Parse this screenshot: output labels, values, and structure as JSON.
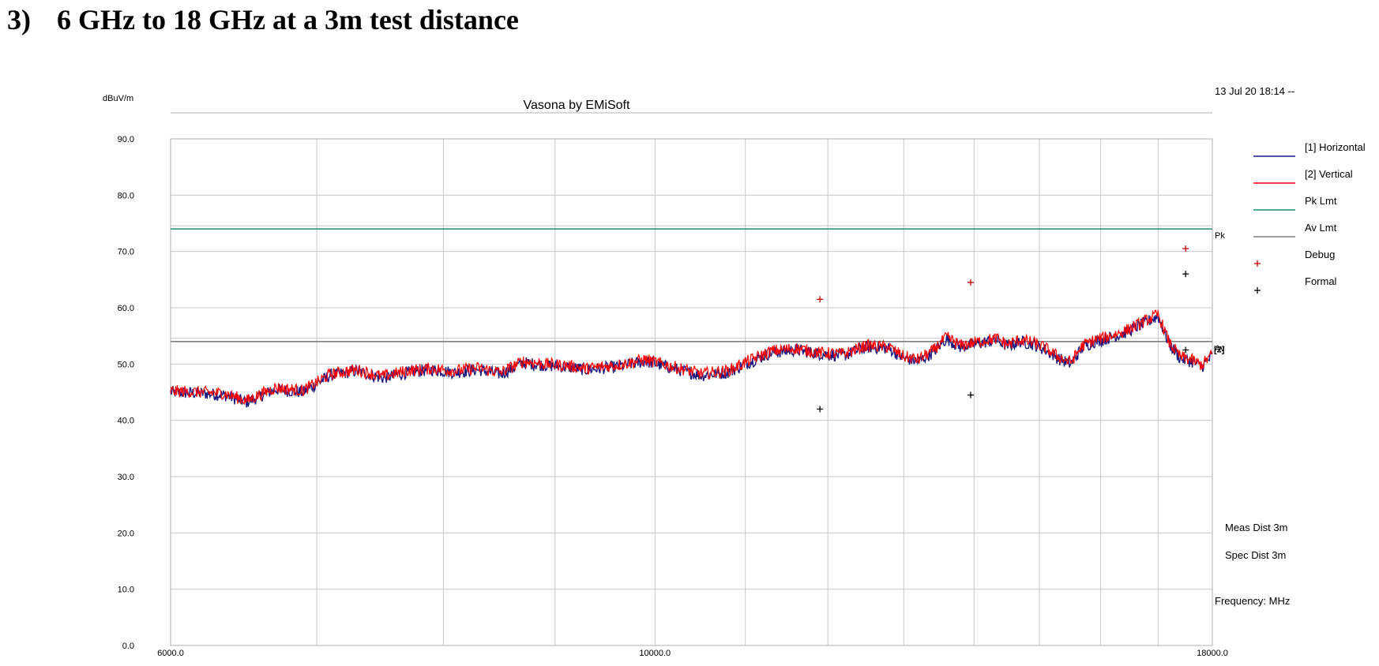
{
  "heading": {
    "number": "3)",
    "text": "6 GHz to 18 GHz at a 3m test distance"
  },
  "colors": {
    "horizontal": "#1a1a80",
    "vertical": "#ff0000",
    "pk_limit": "#1e8c6e",
    "av_limit": "#808080",
    "debug": "#c00000",
    "formal": "#000000",
    "grid": "#c8c8c8"
  },
  "chart_data": {
    "type": "line",
    "title": "Vasona by EMiSoft",
    "timestamp": "13 Jul 20 18:14 --",
    "ylabel": "dBuV/m",
    "xlabel": "Frequency: MHz",
    "x_scale": "log",
    "xlim": [
      6000,
      18000
    ],
    "ylim": [
      0,
      90
    ],
    "y_ticks": [
      "90.0",
      "80.0",
      "70.0",
      "60.0",
      "50.0",
      "40.0",
      "30.0",
      "20.0",
      "10.0",
      "0.0"
    ],
    "x_ticks": [
      "6000.0",
      "10000.0",
      "18000.0"
    ],
    "grid": true,
    "legend_position": "right",
    "legend": [
      {
        "label": "[1] Horizontal",
        "kind": "line",
        "color_key": "horizontal"
      },
      {
        "label": "[2] Vertical",
        "kind": "line",
        "color_key": "vertical"
      },
      {
        "label": "Pk Lmt",
        "kind": "line",
        "color_key": "pk_limit"
      },
      {
        "label": "Av Lmt",
        "kind": "line",
        "color_key": "av_limit"
      },
      {
        "label": "Debug",
        "kind": "marker",
        "color_key": "debug"
      },
      {
        "label": "Formal",
        "kind": "marker",
        "color_key": "formal"
      }
    ],
    "limits": [
      {
        "name": "Pk",
        "value": 74.0,
        "color_key": "pk_limit"
      },
      {
        "name": "Av",
        "value": 54.0,
        "color_key": "av_limit"
      }
    ],
    "trace_end_label": "[2]",
    "series": [
      {
        "name": "[1] Horizontal",
        "color_key": "horizontal",
        "x": [
          6000,
          6200,
          6350,
          6500,
          6700,
          6900,
          7100,
          7300,
          7500,
          7700,
          7900,
          8100,
          8300,
          8500,
          8700,
          8900,
          9100,
          9300,
          9600,
          9900,
          10200,
          10500,
          10800,
          11000,
          11300,
          11600,
          11900,
          12200,
          12500,
          12800,
          13000,
          13200,
          13400,
          13600,
          13800,
          14000,
          14200,
          14350,
          14500,
          14700,
          14900,
          15100,
          15300,
          15500,
          15700,
          15900,
          16100,
          16400,
          16700,
          17000,
          17200,
          17400,
          17600,
          17800,
          18000
        ],
        "y": [
          45.0,
          44.8,
          44.5,
          43.2,
          45.5,
          45.0,
          48.0,
          48.8,
          47.5,
          48.5,
          49.0,
          48.5,
          49.0,
          48.2,
          50.2,
          49.8,
          49.5,
          49.0,
          49.5,
          50.5,
          49.2,
          48.0,
          48.5,
          50.0,
          52.0,
          52.5,
          51.8,
          51.5,
          53.0,
          52.8,
          51.0,
          50.5,
          52.0,
          54.5,
          53.0,
          53.5,
          54.0,
          54.2,
          53.2,
          54.0,
          53.5,
          52.5,
          51.0,
          50.0,
          53.0,
          54.0,
          54.5,
          55.5,
          57.0,
          58.5,
          53.5,
          51.0,
          50.5,
          49.5,
          51.5
        ]
      },
      {
        "name": "[2] Vertical",
        "color_key": "vertical",
        "x": [
          6000,
          6200,
          6350,
          6500,
          6700,
          6900,
          7100,
          7300,
          7500,
          7700,
          7900,
          8100,
          8300,
          8500,
          8700,
          8900,
          9100,
          9300,
          9600,
          9900,
          10200,
          10500,
          10800,
          11000,
          11300,
          11600,
          11900,
          12200,
          12500,
          12800,
          13000,
          13200,
          13400,
          13600,
          13800,
          14000,
          14200,
          14350,
          14500,
          14700,
          14900,
          15100,
          15300,
          15500,
          15700,
          15900,
          16100,
          16400,
          16700,
          17000,
          17200,
          17400,
          17600,
          17800,
          18000
        ],
        "y": [
          45.2,
          45.0,
          44.8,
          43.5,
          45.8,
          45.3,
          48.2,
          49.0,
          47.8,
          48.8,
          49.2,
          48.8,
          49.3,
          48.5,
          50.5,
          50.0,
          49.8,
          49.2,
          49.8,
          50.8,
          49.5,
          48.3,
          48.8,
          50.3,
          52.3,
          52.8,
          52.0,
          51.8,
          53.3,
          53.0,
          51.3,
          50.8,
          52.3,
          54.8,
          53.3,
          53.8,
          54.3,
          54.5,
          53.5,
          54.3,
          53.8,
          52.8,
          51.3,
          50.3,
          53.3,
          54.3,
          54.8,
          55.8,
          57.3,
          58.8,
          53.8,
          51.3,
          50.8,
          49.8,
          51.8
        ]
      }
    ],
    "debug_points": [
      {
        "x": 11900,
        "y": 61.5
      },
      {
        "x": 13950,
        "y": 64.5
      },
      {
        "x": 17500,
        "y": 70.5
      }
    ],
    "formal_points": [
      {
        "x": 11900,
        "y": 42.0
      },
      {
        "x": 13950,
        "y": 44.5
      },
      {
        "x": 17500,
        "y": 52.5
      },
      {
        "x": 17500,
        "y": 66.0
      }
    ],
    "annotations": [
      "Meas Dist 3m",
      "Spec Dist 3m"
    ]
  }
}
